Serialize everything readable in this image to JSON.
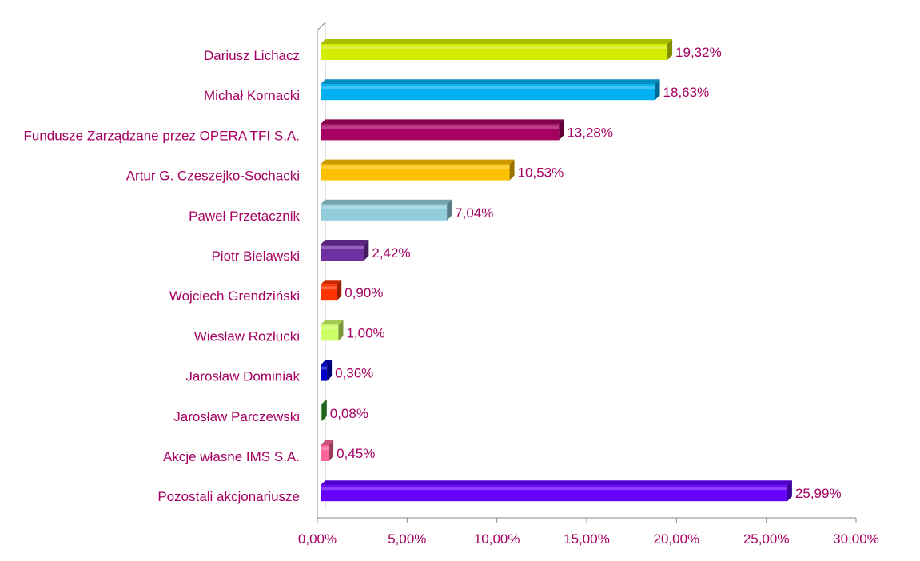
{
  "chart_data": {
    "type": "bar",
    "orientation": "horizontal",
    "categories": [
      "Dariusz Lichacz",
      "Michał Kornacki",
      "Fundusze Zarządzane przez OPERA TFI S.A.",
      "Artur G. Czeszejko-Sochacki",
      "Paweł Przetacznik",
      "Piotr Bielawski",
      "Wojciech Grendziński",
      "Wiesław Rozłucki",
      "Jarosław Dominiak",
      "Jarosław Parczewski",
      "Akcje własne IMS S.A.",
      "Pozostali akcjonariusze"
    ],
    "values": [
      19.32,
      18.63,
      13.28,
      10.53,
      7.04,
      2.42,
      0.9,
      1.0,
      0.36,
      0.08,
      0.45,
      25.99
    ],
    "value_labels": [
      "19,32%",
      "18,63%",
      "13,28%",
      "10,53%",
      "7,04%",
      "2,42%",
      "0,90%",
      "1,00%",
      "0,36%",
      "0,08%",
      "0,45%",
      "25,99%"
    ],
    "colors": [
      "#d4ec00",
      "#00b0f0",
      "#a50062",
      "#ffc000",
      "#92cddc",
      "#7030a0",
      "#ff3300",
      "#ccff66",
      "#0000cc",
      "#33a02c",
      "#ff6699",
      "#6600ff"
    ],
    "xlim": [
      0,
      30
    ],
    "x_ticks": [
      0,
      5,
      10,
      15,
      20,
      25,
      30
    ],
    "x_tick_labels": [
      "0,00%",
      "5,00%",
      "10,00%",
      "15,00%",
      "20,00%",
      "25,00%",
      "30,00%"
    ],
    "label_color": "#a50062",
    "axis_color": "#888888",
    "grid": false,
    "legend": "none",
    "style": "3d"
  }
}
